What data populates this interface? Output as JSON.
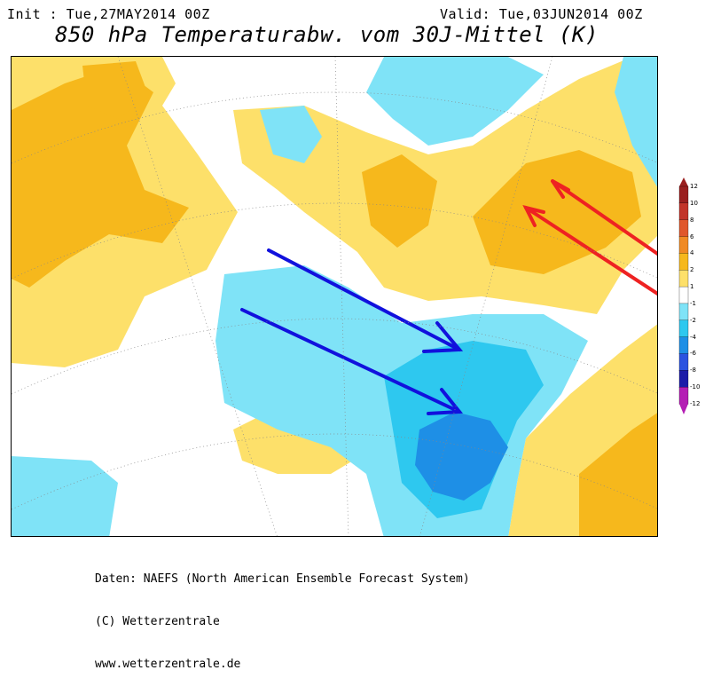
{
  "header": {
    "init": "Init : Tue,27MAY2014 00Z",
    "valid": "Valid: Tue,03JUN2014 00Z",
    "title": "850 hPa Temperaturabw. vom 30J-Mittel (K)"
  },
  "colorbar": {
    "levels": [
      "12",
      "10",
      "8",
      "6",
      "4",
      "2",
      "1",
      "-1",
      "-2",
      "-4",
      "-6",
      "-8",
      "-10",
      "-12"
    ],
    "colors": [
      "#9a1f1f",
      "#c2342a",
      "#e0572b",
      "#f08a24",
      "#f6b81c",
      "#fde06a",
      "#ffffff",
      "#7fe3f7",
      "#2ec8ef",
      "#1e8fe6",
      "#2b53e0",
      "#1c1ca8",
      "#b41eb4"
    ]
  },
  "arrows": {
    "red_color": "#ee2222",
    "blue_color": "#1111dd",
    "count_red": 2,
    "count_blue": 2
  },
  "credits": {
    "line1": "Daten: NAEFS (North American Ensemble Forecast System)",
    "line2": "(C) Wetterzentrale",
    "line3": "www.wetterzentrale.de"
  }
}
